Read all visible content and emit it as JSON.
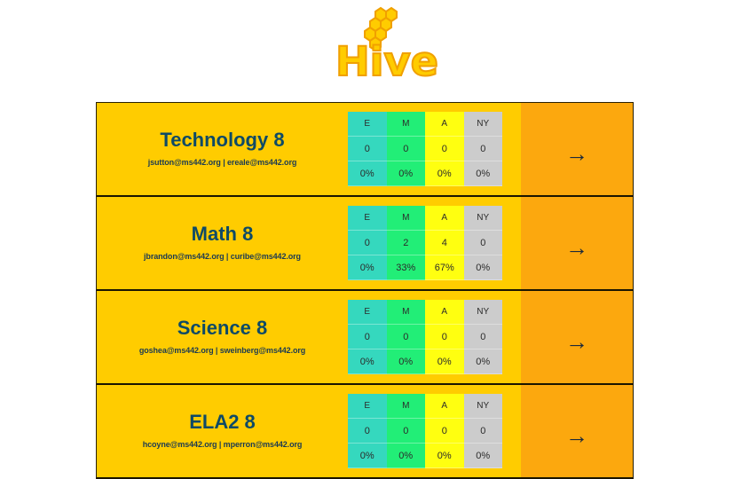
{
  "logo": {
    "text": "Hive"
  },
  "colors": {
    "card_bg": "#ffcc00",
    "go_bg": "#fca80e",
    "title": "#0e4a66",
    "e": "#35d8be",
    "m": "#22ee77",
    "a": "#ffff10",
    "ny": "#cccccc"
  },
  "headers": [
    "E",
    "M",
    "A",
    "NY"
  ],
  "classes": [
    {
      "title": "Technology 8",
      "emails": "jsutton@ms442.org | ereale@ms442.org",
      "counts": [
        "0",
        "0",
        "0",
        "0"
      ],
      "percents": [
        "0%",
        "0%",
        "0%",
        "0%"
      ],
      "go": "→"
    },
    {
      "title": "Math 8",
      "emails": "jbrandon@ms442.org | curibe@ms442.org",
      "counts": [
        "0",
        "2",
        "4",
        "0"
      ],
      "percents": [
        "0%",
        "33%",
        "67%",
        "0%"
      ],
      "go": "→"
    },
    {
      "title": "Science 8",
      "emails": "goshea@ms442.org | sweinberg@ms442.org",
      "counts": [
        "0",
        "0",
        "0",
        "0"
      ],
      "percents": [
        "0%",
        "0%",
        "0%",
        "0%"
      ],
      "go": "→"
    },
    {
      "title": "ELA2 8",
      "emails": "hcoyne@ms442.org | mperron@ms442.org",
      "counts": [
        "0",
        "0",
        "0",
        "0"
      ],
      "percents": [
        "0%",
        "0%",
        "0%",
        "0%"
      ],
      "go": "→"
    }
  ]
}
